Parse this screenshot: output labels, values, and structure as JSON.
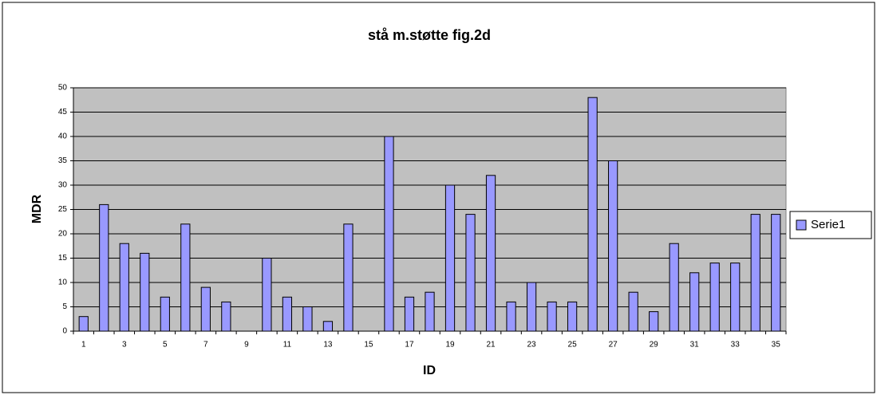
{
  "chart_data": {
    "type": "bar",
    "title": "stå m.støtte fig.2d",
    "x_label": "ID",
    "y_label": "MDR",
    "categories": [
      "1",
      null,
      "3",
      null,
      "5",
      null,
      "7",
      null,
      "9",
      null,
      "11",
      null,
      "13",
      null,
      "15",
      null,
      "17",
      null,
      "19",
      null,
      "21",
      null,
      "23",
      null,
      "25",
      null,
      "27",
      null,
      "29",
      null,
      "31",
      null,
      "33",
      null,
      "35"
    ],
    "series": [
      {
        "name": "Serie1",
        "color": "#9999ff",
        "values": [
          3,
          26,
          18,
          16,
          7,
          22,
          9,
          6,
          0,
          15,
          7,
          5,
          2,
          22,
          0,
          40,
          7,
          8,
          30,
          24,
          32,
          6,
          10,
          6,
          6,
          48,
          35,
          8,
          4,
          18,
          12,
          14,
          14,
          24,
          24
        ]
      }
    ],
    "ylim": [
      0,
      50
    ],
    "yticks": [
      0,
      5,
      10,
      15,
      20,
      25,
      30,
      35,
      40,
      45,
      50
    ],
    "grid": true,
    "legend": "right"
  }
}
